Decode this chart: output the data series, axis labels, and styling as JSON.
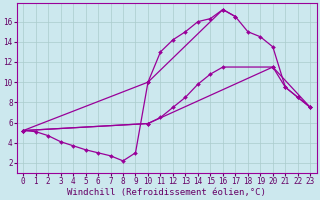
{
  "bg_color": "#cce8ee",
  "line_color": "#990099",
  "grid_color": "#aacccc",
  "xlabel": "Windchill (Refroidissement éolien,°C)",
  "xlabel_color": "#660066",
  "tick_color": "#660066",
  "xlabel_fontsize": 6.5,
  "tick_fontsize": 5.5,
  "xlim": [
    -0.5,
    23.5
  ],
  "ylim": [
    1.0,
    17.8
  ],
  "yticks": [
    2,
    4,
    6,
    8,
    10,
    12,
    14,
    16
  ],
  "xticks": [
    0,
    1,
    2,
    3,
    4,
    5,
    6,
    7,
    8,
    9,
    10,
    11,
    12,
    13,
    14,
    15,
    16,
    17,
    18,
    19,
    20,
    21,
    22,
    23
  ],
  "line1_x": [
    0,
    1,
    2,
    3,
    4,
    5,
    6,
    7,
    8,
    9,
    10,
    11,
    12,
    13,
    14,
    15,
    16,
    17
  ],
  "line1_y": [
    5.2,
    5.1,
    4.7,
    4.1,
    3.7,
    3.3,
    3.0,
    2.7,
    2.2,
    3.0,
    10.0,
    13.0,
    14.2,
    15.0,
    16.0,
    16.3,
    17.2,
    16.5
  ],
  "line2_x": [
    0,
    10,
    16,
    17,
    18,
    19,
    20,
    21,
    22,
    23
  ],
  "line2_y": [
    5.2,
    10.0,
    17.2,
    16.5,
    15.0,
    14.5,
    13.5,
    9.5,
    8.5,
    7.5
  ],
  "line3_x": [
    0,
    10,
    11,
    12,
    13,
    14,
    15,
    16,
    20,
    21,
    22,
    23
  ],
  "line3_y": [
    5.2,
    5.9,
    6.5,
    7.5,
    8.5,
    9.8,
    10.8,
    11.5,
    11.5,
    9.5,
    8.5,
    7.5
  ],
  "line4_x": [
    0,
    10,
    20,
    23
  ],
  "line4_y": [
    5.2,
    5.9,
    11.5,
    7.5
  ]
}
